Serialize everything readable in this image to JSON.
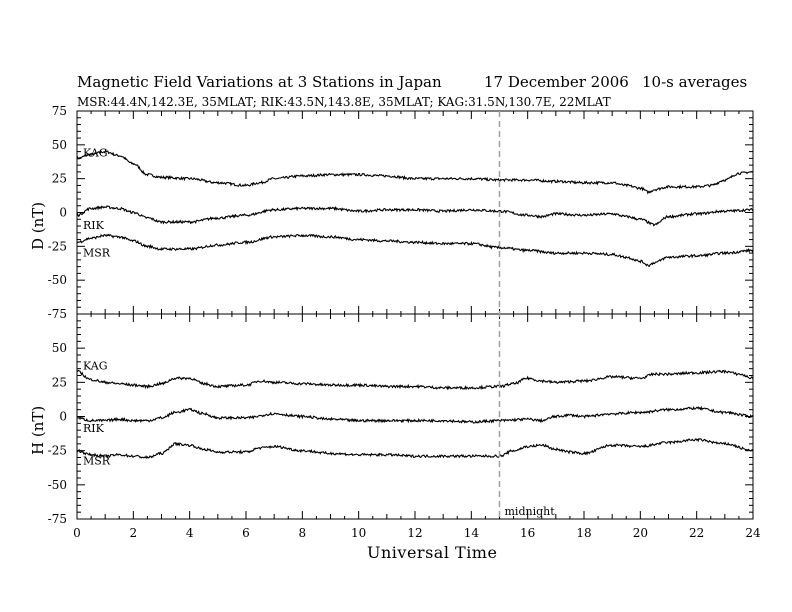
{
  "header": {
    "title": "Magnetic Field Variations at 3 Stations in Japan",
    "date": "17 December 2006",
    "averaging": "10-s averages",
    "stations_line": "MSR:44.4N,142.3E, 35MLAT;   RIK:43.5N,143.8E, 35MLAT;   KAG:31.5N,130.7E, 22MLAT"
  },
  "chart_data": [
    {
      "type": "line",
      "panel": "D",
      "ylabel": "D (nT)",
      "xlabel": "Universal Time",
      "xlim": [
        0,
        24
      ],
      "ylim": [
        -75,
        75
      ],
      "yticks": [
        -75,
        -50,
        -25,
        0,
        25,
        50,
        75
      ],
      "xticks": [
        0,
        2,
        4,
        6,
        8,
        10,
        12,
        14,
        16,
        18,
        20,
        22,
        24
      ],
      "series": [
        {
          "name": "KAG",
          "x": [
            0,
            0.5,
            1,
            1.5,
            2,
            2.5,
            3,
            4,
            5,
            6,
            6.5,
            7,
            8,
            9,
            10,
            11,
            12,
            13,
            14,
            15,
            16,
            17,
            18,
            19,
            19.5,
            20,
            20.3,
            20.5,
            21,
            22,
            22.5,
            23,
            23.5,
            24
          ],
          "y": [
            40,
            43,
            45,
            42,
            36,
            28,
            26,
            25,
            22,
            20,
            22,
            25,
            27,
            28,
            28,
            27,
            25,
            25,
            25,
            24,
            24,
            23,
            22,
            22,
            20,
            18,
            15,
            17,
            19,
            19,
            20,
            24,
            29,
            30
          ]
        },
        {
          "name": "RIK",
          "x": [
            0,
            0.5,
            1,
            1.5,
            2,
            2.5,
            3,
            4,
            5,
            6,
            7,
            8,
            9,
            10,
            11,
            12,
            13,
            14,
            15,
            16,
            16.5,
            17,
            18,
            19,
            19.5,
            20,
            20.5,
            21,
            22,
            23,
            24
          ],
          "y": [
            -2,
            3,
            4,
            3,
            0,
            -4,
            -7,
            -7,
            -4,
            -2,
            2,
            3,
            3,
            1,
            2,
            2,
            1,
            2,
            1,
            -2,
            -3,
            -1,
            -2,
            -1,
            -3,
            -5,
            -9,
            -3,
            -1,
            1,
            2
          ]
        },
        {
          "name": "MSR",
          "x": [
            0,
            0.5,
            1,
            1.5,
            2,
            2.5,
            3,
            4,
            5,
            6,
            7,
            8,
            9,
            10,
            11,
            12,
            13,
            14,
            15,
            16,
            17,
            18,
            19,
            19.5,
            20,
            20.3,
            20.5,
            21,
            22,
            23,
            24
          ],
          "y": [
            -22,
            -19,
            -17,
            -18,
            -21,
            -25,
            -27,
            -27,
            -24,
            -22,
            -18,
            -17,
            -18,
            -20,
            -21,
            -22,
            -23,
            -23,
            -26,
            -28,
            -30,
            -30,
            -31,
            -33,
            -36,
            -39,
            -37,
            -33,
            -32,
            -30,
            -28
          ]
        }
      ]
    },
    {
      "type": "line",
      "panel": "H",
      "ylabel": "H (nT)",
      "xlabel": "Universal Time",
      "xlim": [
        0,
        24
      ],
      "ylim": [
        -75,
        75
      ],
      "yticks": [
        -75,
        -50,
        -25,
        0,
        25,
        50,
        75
      ],
      "xticks": [
        0,
        2,
        4,
        6,
        8,
        10,
        12,
        14,
        16,
        18,
        20,
        22,
        24
      ],
      "annotation": {
        "text": "midnight",
        "x": 15
      },
      "series": [
        {
          "name": "KAG",
          "x": [
            0,
            0.5,
            1,
            1.5,
            2,
            2.5,
            3,
            3.5,
            4,
            4.5,
            5,
            6,
            6.5,
            7,
            8,
            9,
            10,
            11,
            12,
            13,
            14,
            15,
            15.5,
            16,
            16.5,
            17,
            18,
            19,
            20,
            20.5,
            21,
            22,
            23,
            23.5,
            24
          ],
          "y": [
            33,
            27,
            25,
            24,
            23,
            22,
            24,
            28,
            28,
            24,
            22,
            23,
            26,
            25,
            24,
            23,
            23,
            22,
            22,
            21,
            21,
            22,
            24,
            28,
            26,
            25,
            26,
            29,
            28,
            31,
            31,
            32,
            33,
            31,
            28
          ]
        },
        {
          "name": "RIK",
          "x": [
            0,
            0.5,
            1,
            1.5,
            2,
            2.5,
            3,
            3.5,
            4,
            4.5,
            5,
            6,
            7,
            8,
            9,
            10,
            11,
            12,
            13,
            14,
            15,
            16,
            16.5,
            17,
            17.5,
            18,
            19,
            20,
            21,
            22,
            23,
            24
          ],
          "y": [
            -1,
            -3,
            -3,
            -2,
            -3,
            -3,
            -1,
            3,
            5,
            2,
            -1,
            -1,
            2,
            0,
            -2,
            -3,
            -3,
            -3,
            -3,
            -4,
            -3,
            -2,
            -3,
            0,
            1,
            0,
            2,
            3,
            5,
            6,
            3,
            0
          ]
        },
        {
          "name": "MSR",
          "x": [
            0,
            0.5,
            1,
            1.5,
            2,
            2.5,
            3,
            3.5,
            4,
            4.5,
            5,
            6,
            6.5,
            7,
            8,
            9,
            10,
            11,
            12,
            13,
            14,
            15,
            15.5,
            16,
            16.5,
            17,
            17.5,
            18,
            19,
            20,
            21,
            22,
            23,
            24
          ],
          "y": [
            -25,
            -28,
            -29,
            -28,
            -29,
            -30,
            -27,
            -20,
            -21,
            -24,
            -26,
            -26,
            -23,
            -22,
            -25,
            -27,
            -28,
            -28,
            -29,
            -29,
            -29,
            -29,
            -25,
            -22,
            -21,
            -24,
            -26,
            -27,
            -21,
            -22,
            -19,
            -17,
            -20,
            -25
          ]
        }
      ]
    }
  ]
}
